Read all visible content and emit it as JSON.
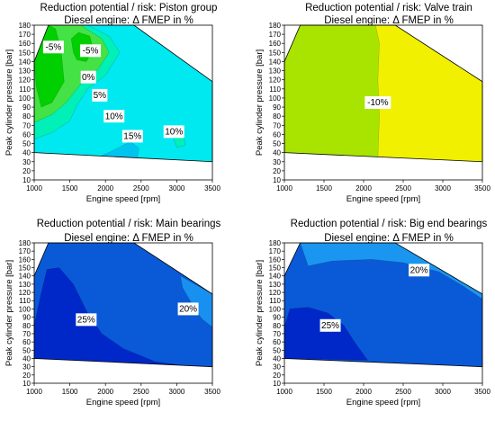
{
  "chart_data": [
    {
      "type": "contour",
      "title": "Reduction potential / risk: Piston group",
      "subtitle": "Diesel engine: Δ FMEP in %",
      "xlabel": "Engine speed [rpm]",
      "ylabel": "Peak cylinder pressure [bar]",
      "xlim": [
        1000,
        3500
      ],
      "ylim": [
        10,
        180
      ],
      "xticks": [
        1000,
        1500,
        2000,
        2500,
        3000,
        3500
      ],
      "yticks": [
        10,
        20,
        30,
        40,
        50,
        60,
        70,
        80,
        90,
        100,
        110,
        120,
        130,
        140,
        150,
        160,
        170,
        180
      ],
      "domain": [
        [
          1000,
          40
        ],
        [
          1000,
          140
        ],
        [
          1200,
          180
        ],
        [
          2400,
          180
        ],
        [
          3500,
          118
        ],
        [
          3500,
          30
        ],
        [
          1000,
          40
        ]
      ],
      "regions": [
        {
          "level": "10%",
          "color": "#00e8f0",
          "points": [
            [
              1000,
              40
            ],
            [
              1000,
              140
            ],
            [
              1200,
              180
            ],
            [
              2400,
              180
            ],
            [
              3500,
              118
            ],
            [
              3500,
              30
            ]
          ]
        },
        {
          "level": "5%",
          "color": "#00f0b8",
          "points": [
            [
              1000,
              55
            ],
            [
              1000,
              140
            ],
            [
              1200,
              180
            ],
            [
              1750,
              180
            ],
            [
              2050,
              168
            ],
            [
              2200,
              150
            ],
            [
              2000,
              125
            ],
            [
              1750,
              110
            ],
            [
              1600,
              92
            ],
            [
              1500,
              75
            ],
            [
              1250,
              62
            ]
          ]
        },
        {
          "level": "0%",
          "color": "#44e244",
          "points": [
            [
              1000,
              73
            ],
            [
              1000,
              140
            ],
            [
              1200,
              180
            ],
            [
              1650,
              180
            ],
            [
              1950,
              165
            ],
            [
              2050,
              150
            ],
            [
              1900,
              132
            ],
            [
              1650,
              115
            ],
            [
              1450,
              95
            ],
            [
              1250,
              82
            ]
          ]
        },
        {
          "level": "-5%",
          "color": "#00d000",
          "points": [
            [
              1030,
              112
            ],
            [
              1000,
              140
            ],
            [
              1200,
              180
            ],
            [
              1300,
              176
            ],
            [
              1380,
              150
            ],
            [
              1420,
              118
            ],
            [
              1250,
              95
            ],
            [
              1100,
              90
            ]
          ]
        },
        {
          "level": "-5%",
          "color": "#00d000",
          "points": [
            [
              1550,
              150
            ],
            [
              1520,
              165
            ],
            [
              1620,
              172
            ],
            [
              1780,
              168
            ],
            [
              1830,
              153
            ],
            [
              1730,
              140
            ],
            [
              1600,
              142
            ]
          ]
        },
        {
          "level": "15%",
          "color": "#00c4f0",
          "points": [
            [
              1800,
              32
            ],
            [
              2050,
              40
            ],
            [
              2350,
              52
            ],
            [
              2470,
              45
            ],
            [
              2440,
              33
            ],
            [
              2150,
              33
            ]
          ]
        },
        {
          "level": "10%",
          "color": "#00f0b8",
          "points": [
            [
              2950,
              58
            ],
            [
              3100,
              58
            ],
            [
              3120,
              48
            ],
            [
              3000,
              46
            ]
          ]
        }
      ],
      "labels": [
        {
          "text": "-5%",
          "x": 1270,
          "y": 156
        },
        {
          "text": "-5%",
          "x": 1790,
          "y": 152
        },
        {
          "text": "0%",
          "x": 1760,
          "y": 123
        },
        {
          "text": "5%",
          "x": 1920,
          "y": 103
        },
        {
          "text": "10%",
          "x": 2120,
          "y": 80
        },
        {
          "text": "15%",
          "x": 2380,
          "y": 58
        },
        {
          "text": "10%",
          "x": 2960,
          "y": 63
        }
      ]
    },
    {
      "type": "contour",
      "title": "Reduction potential / risk: Valve train",
      "subtitle": "Diesel engine: Δ FMEP in %",
      "xlabel": "Engine speed [rpm]",
      "ylabel": "Peak cylinder pressure [bar]",
      "xlim": [
        1000,
        3500
      ],
      "ylim": [
        10,
        180
      ],
      "xticks": [
        1000,
        1500,
        2000,
        2500,
        3000,
        3500
      ],
      "yticks": [
        10,
        20,
        30,
        40,
        50,
        60,
        70,
        80,
        90,
        100,
        110,
        120,
        130,
        140,
        150,
        160,
        170,
        180
      ],
      "domain": [
        [
          1000,
          40
        ],
        [
          1000,
          140
        ],
        [
          1200,
          180
        ],
        [
          2400,
          180
        ],
        [
          3500,
          118
        ],
        [
          3500,
          30
        ],
        [
          1000,
          40
        ]
      ],
      "regions": [
        {
          "level": "-10%",
          "color": "#f0f000",
          "points": [
            [
              1000,
              40
            ],
            [
              1000,
              140
            ],
            [
              1200,
              180
            ],
            [
              2400,
              180
            ],
            [
              3500,
              118
            ],
            [
              3500,
              30
            ]
          ]
        },
        {
          "level": "-10%",
          "color": "#a8e400",
          "points": [
            [
              1000,
              40
            ],
            [
              1000,
              140
            ],
            [
              1200,
              180
            ],
            [
              2150,
              180
            ],
            [
              2200,
              160
            ],
            [
              2180,
              120
            ],
            [
              2200,
              80
            ],
            [
              2180,
              34
            ]
          ]
        }
      ],
      "labels": [
        {
          "text": "-10%",
          "x": 2180,
          "y": 95
        }
      ]
    },
    {
      "type": "contour",
      "title": "Reduction potential / risk: Main bearings",
      "subtitle": "Diesel engine: Δ FMEP in %",
      "xlabel": "Engine speed [rpm]",
      "ylabel": "Peak cylinder pressure [bar]",
      "xlim": [
        1000,
        3500
      ],
      "ylim": [
        10,
        180
      ],
      "xticks": [
        1000,
        1500,
        2000,
        2500,
        3000,
        3500
      ],
      "yticks": [
        10,
        20,
        30,
        40,
        50,
        60,
        70,
        80,
        90,
        100,
        110,
        120,
        130,
        140,
        150,
        160,
        170,
        180
      ],
      "domain": [
        [
          1000,
          40
        ],
        [
          1000,
          140
        ],
        [
          1200,
          180
        ],
        [
          2400,
          180
        ],
        [
          3500,
          118
        ],
        [
          3500,
          30
        ],
        [
          1000,
          40
        ]
      ],
      "regions": [
        {
          "level": "25%",
          "color": "#0a5ad8",
          "points": [
            [
              1000,
              40
            ],
            [
              1000,
              140
            ],
            [
              1200,
              180
            ],
            [
              2400,
              180
            ],
            [
              3500,
              118
            ],
            [
              3500,
              30
            ]
          ]
        },
        {
          "level": "20%",
          "color": "#1890f0",
          "points": [
            [
              3050,
              140
            ],
            [
              3500,
              118
            ],
            [
              3500,
              78
            ],
            [
              3350,
              88
            ],
            [
              3200,
              108
            ],
            [
              3080,
              126
            ]
          ]
        },
        {
          "level": "25%",
          "color": "#0028c8",
          "points": [
            [
              1000,
              40
            ],
            [
              1000,
              80
            ],
            [
              1100,
              120
            ],
            [
              1180,
              148
            ],
            [
              1350,
              150
            ],
            [
              1550,
              130
            ],
            [
              1750,
              95
            ],
            [
              1950,
              70
            ],
            [
              2250,
              52
            ],
            [
              2700,
              36
            ],
            [
              3050,
              32
            ]
          ]
        }
      ],
      "labels": [
        {
          "text": "25%",
          "x": 1730,
          "y": 87
        },
        {
          "text": "20%",
          "x": 3160,
          "y": 100
        }
      ]
    },
    {
      "type": "contour",
      "title": "Reduction potential / risk: Big end bearings",
      "subtitle": "Diesel engine: Δ FMEP in %",
      "xlabel": "Engine speed [rpm]",
      "ylabel": "Peak cylinder pressure [bar]",
      "xlim": [
        1000,
        3500
      ],
      "ylim": [
        10,
        180
      ],
      "xticks": [
        1000,
        1500,
        2000,
        2500,
        3000,
        3500
      ],
      "yticks": [
        10,
        20,
        30,
        40,
        50,
        60,
        70,
        80,
        90,
        100,
        110,
        120,
        130,
        140,
        150,
        160,
        170,
        180
      ],
      "domain": [
        [
          1000,
          40
        ],
        [
          1000,
          140
        ],
        [
          1200,
          180
        ],
        [
          2400,
          180
        ],
        [
          3500,
          118
        ],
        [
          3500,
          30
        ],
        [
          1000,
          40
        ]
      ],
      "regions": [
        {
          "level": "",
          "color": "#0a5ad8",
          "points": [
            [
              1000,
              40
            ],
            [
              1000,
              140
            ],
            [
              1200,
              180
            ],
            [
              2400,
              180
            ],
            [
              3500,
              118
            ],
            [
              3500,
              30
            ]
          ]
        },
        {
          "level": "20%",
          "color": "#1a96f0",
          "points": [
            [
              1200,
              180
            ],
            [
              2400,
              180
            ],
            [
              3500,
              118
            ],
            [
              3500,
              112
            ],
            [
              3250,
              128
            ],
            [
              2950,
              145
            ],
            [
              2500,
              156
            ],
            [
              2100,
              160
            ],
            [
              1600,
              158
            ],
            [
              1300,
              152
            ]
          ]
        },
        {
          "level": "25%",
          "color": "#0028c8",
          "points": [
            [
              1000,
              40
            ],
            [
              1000,
              78
            ],
            [
              1070,
              100
            ],
            [
              1300,
              102
            ],
            [
              1550,
              95
            ],
            [
              1750,
              80
            ],
            [
              1900,
              58
            ],
            [
              2050,
              38
            ]
          ]
        }
      ],
      "labels": [
        {
          "text": "20%",
          "x": 2700,
          "y": 147
        },
        {
          "text": "25%",
          "x": 1580,
          "y": 80
        }
      ]
    }
  ]
}
